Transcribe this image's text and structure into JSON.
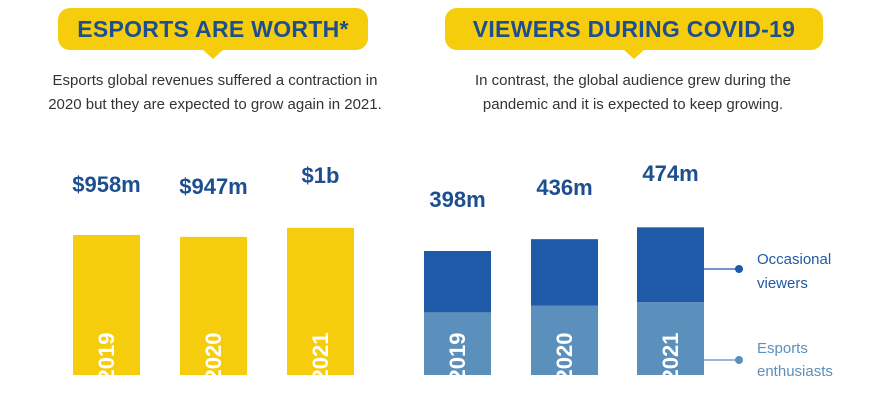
{
  "left_panel": {
    "title": "ESPORTS ARE WORTH*",
    "description_line1": "Esports global revenues suffered a contraction in",
    "description_line2": "2020 but they are expected to grow again in 2021."
  },
  "right_panel": {
    "title": "VIEWERS DURING COVID-19",
    "description_line1": "In contrast, the global audience grew during the",
    "description_line2": "pandemic and it is expected to keep growing."
  },
  "chart_data": [
    {
      "type": "bar",
      "title": "ESPORTS ARE WORTH*",
      "unit": "USD millions",
      "categories": [
        "2019",
        "2020",
        "2021"
      ],
      "values": [
        958,
        947,
        1000
      ],
      "value_labels": [
        "$958m",
        "$947m",
        "$1b"
      ],
      "series": [
        {
          "name": "",
          "values": [
            958,
            947,
            1000
          ]
        }
      ],
      "colors": {
        "bar": "#f6cd0d",
        "value_label": "#1d4e8f",
        "category_label": "#ffffff"
      }
    },
    {
      "type": "bar",
      "stacked": true,
      "title": "VIEWERS DURING COVID-19",
      "unit": "millions",
      "categories": [
        "2019",
        "2020",
        "2021"
      ],
      "totals": [
        398,
        436,
        474
      ],
      "value_labels": [
        "398m",
        "436m",
        "474m"
      ],
      "series": [
        {
          "name": "Esports enthusiasts",
          "values": [
            201,
            223,
            234
          ],
          "color": "#5b8fbc"
        },
        {
          "name": "Occasional viewers",
          "values": [
            197,
            213,
            240
          ],
          "color": "#1e5aa8"
        }
      ],
      "legend": {
        "placement": "right",
        "items": [
          {
            "line1": "Occasional",
            "line2": "viewers",
            "color": "#1e5aa8"
          },
          {
            "line1": "Esports",
            "line2": "enthusiasts",
            "color": "#5b8fbc"
          }
        ],
        "marker_color": "#1e5aa8"
      },
      "colors": {
        "value_label": "#1d4e8f",
        "category_label": "#ffffff"
      }
    }
  ]
}
